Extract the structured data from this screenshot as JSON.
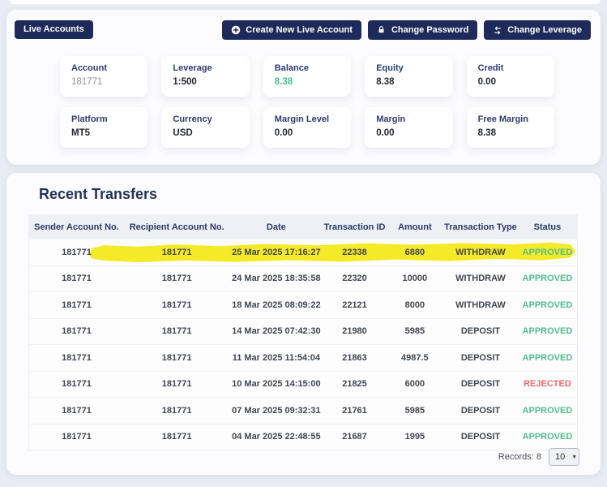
{
  "toolbar": {
    "live_accounts": "Live Accounts",
    "actions": [
      {
        "label": "Create New Live Account",
        "icon": "plus-circle"
      },
      {
        "label": "Change Password",
        "icon": "lock"
      },
      {
        "label": "Change Leverage",
        "icon": "swap-arrows"
      }
    ]
  },
  "account_summary": {
    "cards": [
      {
        "label": "Account",
        "value": "181771",
        "style": "muted"
      },
      {
        "label": "Leverage",
        "value": "1:500",
        "style": "bold"
      },
      {
        "label": "Balance",
        "value": "8.38",
        "style": "green"
      },
      {
        "label": "Equity",
        "value": "8.38",
        "style": "bold"
      },
      {
        "label": "Credit",
        "value": "0.00",
        "style": "bold"
      },
      {
        "label": "Platform",
        "value": "MT5",
        "style": "bold"
      },
      {
        "label": "Currency",
        "value": "USD",
        "style": "bold"
      },
      {
        "label": "Margin Level",
        "value": "0.00",
        "style": "bold"
      },
      {
        "label": "Margin",
        "value": "0.00",
        "style": "bold"
      },
      {
        "label": "Free Margin",
        "value": "8.38",
        "style": "bold"
      }
    ]
  },
  "transfers": {
    "title": "Recent Transfers",
    "columns": [
      "Sender Account No.",
      "Recipient Account No.",
      "Date",
      "Transaction ID",
      "Amount",
      "Transaction Type",
      "Status"
    ],
    "rows": [
      {
        "sender": "181771",
        "recipient": "181771",
        "date": "25 Mar 2025 17:16:27",
        "transaction_id": "22338",
        "amount": "6880",
        "type": "WITHDRAW",
        "status": "APPROVED",
        "highlighted": true
      },
      {
        "sender": "181771",
        "recipient": "181771",
        "date": "24 Mar 2025 18:35:58",
        "transaction_id": "22320",
        "amount": "10000",
        "type": "WITHDRAW",
        "status": "APPROVED",
        "highlighted": false
      },
      {
        "sender": "181771",
        "recipient": "181771",
        "date": "18 Mar 2025 08:09:22",
        "transaction_id": "22121",
        "amount": "8000",
        "type": "WITHDRAW",
        "status": "APPROVED",
        "highlighted": false
      },
      {
        "sender": "181771",
        "recipient": "181771",
        "date": "14 Mar 2025 07:42:30",
        "transaction_id": "21980",
        "amount": "5985",
        "type": "DEPOSIT",
        "status": "APPROVED",
        "highlighted": false
      },
      {
        "sender": "181771",
        "recipient": "181771",
        "date": "11 Mar 2025 11:54:04",
        "transaction_id": "21863",
        "amount": "4987.5",
        "type": "DEPOSIT",
        "status": "APPROVED",
        "highlighted": false
      },
      {
        "sender": "181771",
        "recipient": "181771",
        "date": "10 Mar 2025 14:15:00",
        "transaction_id": "21825",
        "amount": "6000",
        "type": "DEPOSIT",
        "status": "REJECTED",
        "highlighted": false
      },
      {
        "sender": "181771",
        "recipient": "181771",
        "date": "07 Mar 2025 09:32:31",
        "transaction_id": "21761",
        "amount": "5985",
        "type": "DEPOSIT",
        "status": "APPROVED",
        "highlighted": false
      },
      {
        "sender": "181771",
        "recipient": "181771",
        "date": "04 Mar 2025 22:48:55",
        "transaction_id": "21687",
        "amount": "1995",
        "type": "DEPOSIT",
        "status": "APPROVED",
        "highlighted": false
      }
    ],
    "footer": {
      "records": "Records: 8",
      "page_size": "10"
    }
  },
  "colors": {
    "accent_navy": "#1e2a5a",
    "approved_green": "#52bd8c",
    "rejected_red": "#ee6a6a",
    "highlight_yellow": "#f4e91c",
    "balance_green": "#41bd8c",
    "page_background": "#e9ecf4"
  }
}
